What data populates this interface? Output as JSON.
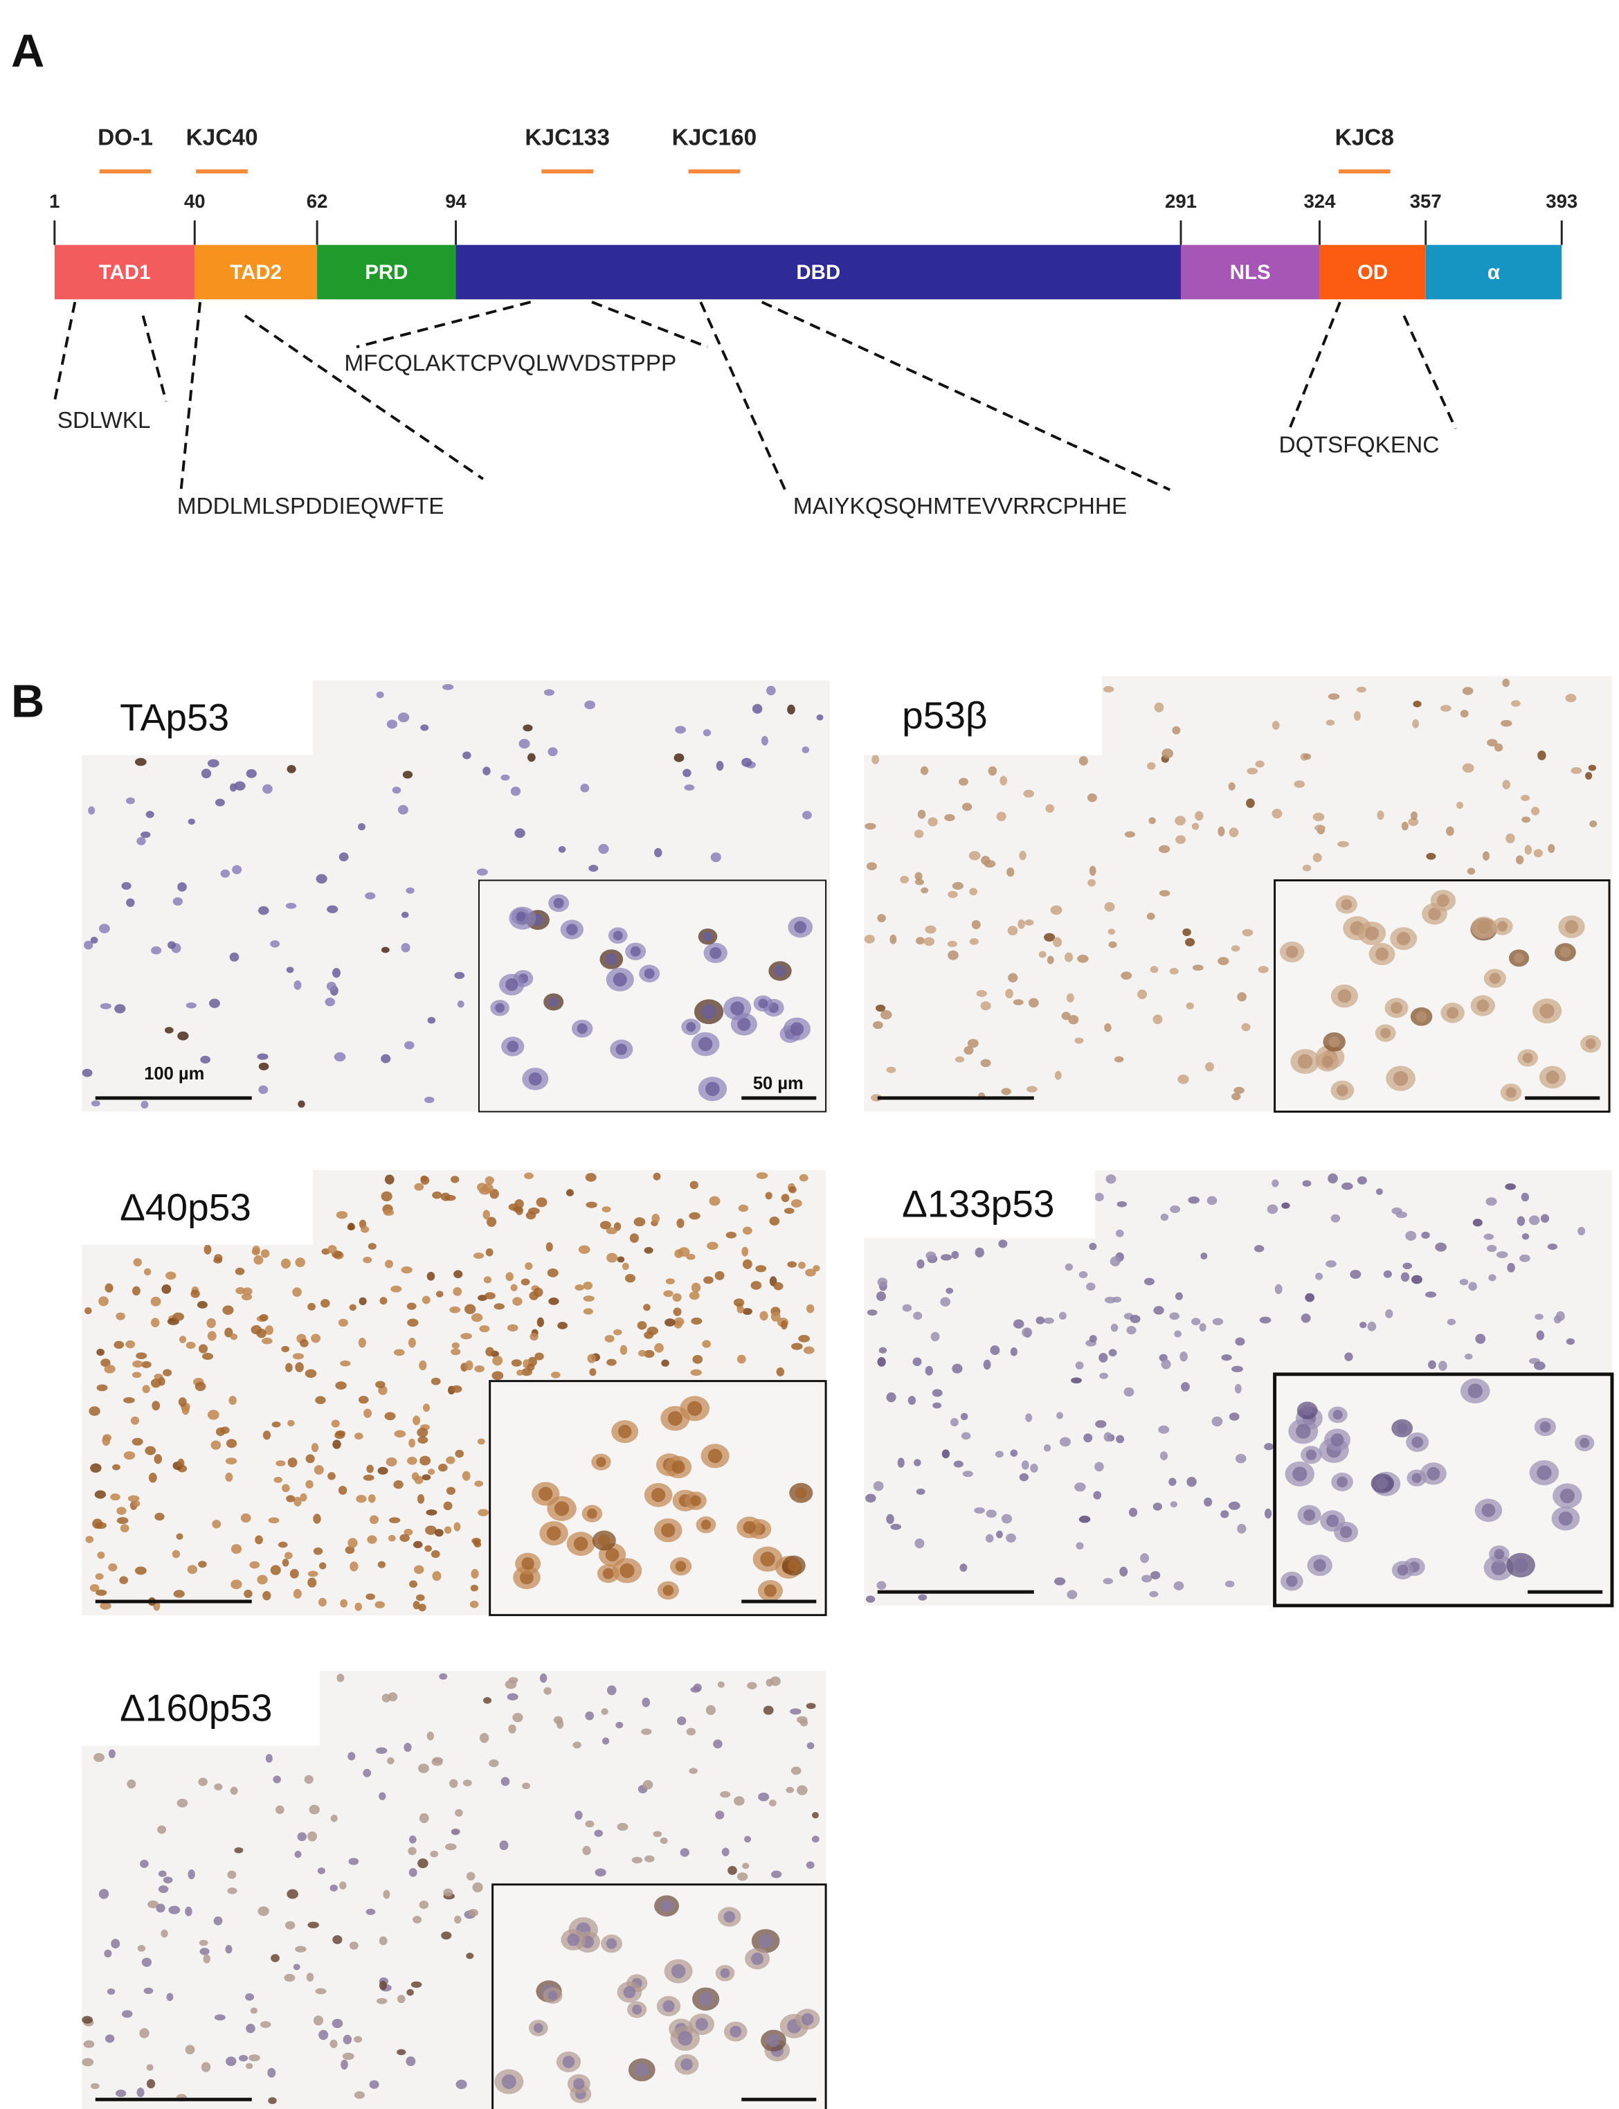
{
  "panel_a": {
    "label": "A",
    "antibodies": [
      "DO-1",
      "KJC40",
      "KJC133",
      "KJC160",
      "KJC8"
    ],
    "positions": [
      1,
      40,
      62,
      94,
      291,
      324,
      357,
      393
    ],
    "domains": [
      "TAD1",
      "TAD2",
      "PRD",
      "DBD",
      "NLS",
      "OD",
      "α"
    ],
    "epitopes": [
      "SDLWKL",
      "MDDLMLSPDDIEQWFTE",
      "MFCQLAKTCPVQLWVDSTPPP",
      "MAIYKQSQHMTEVVRRCPHHE",
      "DQTSFQKENC"
    ]
  },
  "panel_b": {
    "label": "B",
    "images": [
      {
        "label": "TAp53",
        "scale_bar": "100 µm",
        "inset_scale_bar": "50 µm"
      },
      {
        "label": "p53β"
      },
      {
        "label": "Δ40p53"
      },
      {
        "label": "Δ133p53"
      },
      {
        "label": "Δ160p53"
      }
    ]
  }
}
